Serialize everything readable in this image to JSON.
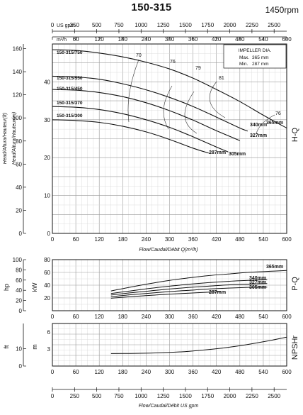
{
  "header": {
    "model": "150-315",
    "speed": "1450rpm"
  },
  "chart_data": [
    {
      "type": "line",
      "name": "H-Q",
      "side_label": "H-Q",
      "xlabel": "Flow/Caudal/Débit Q(m³/h)",
      "ylabel_m": "Head/Altura/Hauteur(m)",
      "ylabel_ft": "Head/Altura/Hauteur(ft)",
      "xlim": [
        0,
        600
      ],
      "ylim_m": [
        0,
        50
      ],
      "ylim_ft": [
        0,
        164
      ],
      "x_ticks": [
        0,
        60,
        120,
        180,
        240,
        300,
        360,
        420,
        480,
        540,
        600
      ],
      "y_ticks_m": [
        0,
        10,
        20,
        30,
        40
      ],
      "y_ticks_ft": [
        0,
        20,
        40,
        60,
        80,
        100,
        120,
        140,
        160
      ],
      "top_scale_unit_flow": "m³/h",
      "top_scale_unit_gpm": "US gpm",
      "gpm_ticks": [
        0,
        250,
        500,
        750,
        1000,
        1250,
        1500,
        1750,
        2000,
        2250,
        2500
      ],
      "impeller_box": {
        "title": "IMPELLER DIA.",
        "max_label": "Max.",
        "max_value": "365 mm",
        "min_label": "Min.",
        "min_value": "287 mm"
      },
      "motor_labels": [
        "150-315/750",
        "150-315/550",
        "150-315/450",
        "150-315/370",
        "150-315/300"
      ],
      "series": [
        {
          "name": "365mm",
          "x": [
            0,
            60,
            120,
            180,
            240,
            300,
            360,
            420,
            480,
            540,
            600
          ],
          "y": [
            48.5,
            48.3,
            47.6,
            46.6,
            45.2,
            43.4,
            41.0,
            38.0,
            34.8,
            31.2,
            27.8
          ]
        },
        {
          "name": "340mm",
          "x": [
            0,
            60,
            120,
            180,
            240,
            300,
            360,
            420,
            480,
            500
          ],
          "y": [
            41.5,
            41.3,
            40.7,
            39.5,
            37.9,
            35.9,
            33.5,
            30.7,
            27.8,
            27.0
          ]
        },
        {
          "name": "327mm",
          "x": [
            0,
            60,
            120,
            180,
            240,
            300,
            360,
            420,
            480
          ],
          "y": [
            38.0,
            37.8,
            37.2,
            36.1,
            34.5,
            32.4,
            29.9,
            27.1,
            24.5
          ]
        },
        {
          "name": "305mm",
          "x": [
            0,
            60,
            120,
            180,
            240,
            300,
            360,
            420,
            450
          ],
          "y": [
            33.5,
            33.3,
            32.7,
            31.6,
            30.0,
            28.0,
            25.5,
            22.8,
            21.5
          ]
        },
        {
          "name": "287mm",
          "x": [
            0,
            60,
            120,
            180,
            240,
            300,
            360,
            400
          ],
          "y": [
            30.0,
            29.8,
            29.3,
            28.3,
            26.8,
            24.8,
            22.5,
            21.2
          ]
        }
      ],
      "efficiency_labels": [
        "70",
        "76",
        "79",
        "81",
        "76"
      ]
    },
    {
      "type": "line",
      "name": "P-Q",
      "side_label": "P-Q",
      "ylabel_hp": "hp",
      "ylabel_kw": "kW",
      "xlim": [
        150,
        600
      ],
      "y_ticks_hp": [
        0,
        20,
        40,
        60,
        80,
        100
      ],
      "y_ticks_kw": [
        20,
        40,
        60,
        80
      ],
      "series": [
        {
          "name": "365mm",
          "x": [
            150,
            200,
            250,
            300,
            350,
            400,
            450,
            500,
            550,
            600
          ],
          "y": [
            31,
            37,
            42.5,
            47.5,
            51.5,
            55,
            57.5,
            60,
            61.5,
            63
          ]
        },
        {
          "name": "340mm",
          "x": [
            150,
            200,
            250,
            300,
            350,
            400,
            450,
            500,
            550
          ],
          "y": [
            27,
            31,
            35,
            38.5,
            41.5,
            44,
            46,
            47.5,
            48.5
          ]
        },
        {
          "name": "327mm",
          "x": [
            150,
            200,
            250,
            300,
            350,
            400,
            450,
            500,
            550
          ],
          "y": [
            24.5,
            28,
            31,
            34,
            36.5,
            38.5,
            40.5,
            41.5,
            42.5
          ]
        },
        {
          "name": "305mm",
          "x": [
            150,
            200,
            250,
            300,
            350,
            400,
            450,
            500,
            550
          ],
          "y": [
            22,
            25,
            27.5,
            30,
            32,
            34,
            35.5,
            36.5,
            37
          ]
        },
        {
          "name": "287mm",
          "x": [
            150,
            200,
            250,
            300,
            350,
            400,
            430
          ],
          "y": [
            19.5,
            22,
            24,
            26,
            27.5,
            29,
            29.5
          ]
        }
      ]
    },
    {
      "type": "line",
      "name": "NPSHr",
      "side_label": "NPSHr",
      "ylabel_ft": "ft",
      "ylabel_m": "m",
      "y_ticks_ft": [
        0,
        10
      ],
      "y_ticks_m": [
        3,
        6
      ],
      "series": [
        {
          "name": "NPSHr",
          "x": [
            150,
            200,
            250,
            300,
            350,
            400,
            450,
            500,
            550,
            600
          ],
          "y": [
            2.2,
            2.22,
            2.28,
            2.4,
            2.6,
            2.9,
            3.3,
            3.8,
            4.4,
            5.1
          ]
        }
      ]
    },
    {
      "type": "line",
      "name": "bottom-scale",
      "xlabel": "Flow/Caudal/Débit  US gpm",
      "gpm_ticks": [
        0,
        250,
        500,
        750,
        1000,
        1250,
        1500,
        1750,
        2000,
        2250,
        2500
      ]
    }
  ]
}
